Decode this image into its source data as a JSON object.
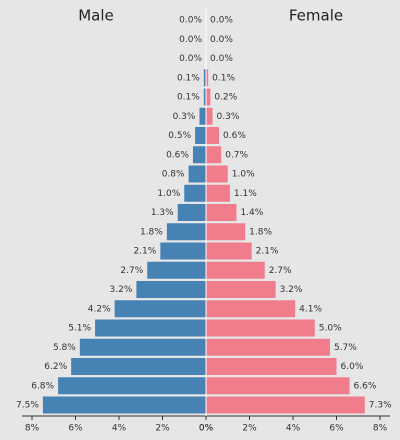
{
  "chart_data": {
    "type": "pyramid",
    "series": [
      {
        "name": "Male",
        "color": "#4682b4",
        "values": [
          0.0,
          0.0,
          0.0,
          0.1,
          0.1,
          0.3,
          0.5,
          0.6,
          0.8,
          1.0,
          1.3,
          1.8,
          2.1,
          2.7,
          3.2,
          4.2,
          5.1,
          5.8,
          6.2,
          6.8,
          7.5
        ],
        "value_labels": [
          "0.0%",
          "0.0%",
          "0.0%",
          "0.1%",
          "0.1%",
          "0.3%",
          "0.5%",
          "0.6%",
          "0.8%",
          "1.0%",
          "1.3%",
          "1.8%",
          "2.1%",
          "2.7%",
          "3.2%",
          "4.2%",
          "5.1%",
          "5.8%",
          "6.2%",
          "6.8%",
          "7.5%"
        ]
      },
      {
        "name": "Female",
        "color": "#f07c8c",
        "values": [
          0.0,
          0.0,
          0.0,
          0.1,
          0.2,
          0.3,
          0.6,
          0.7,
          1.0,
          1.1,
          1.4,
          1.8,
          2.1,
          2.7,
          3.2,
          4.1,
          5.0,
          5.7,
          6.0,
          6.6,
          7.3
        ],
        "value_labels": [
          "0.0%",
          "0.0%",
          "0.0%",
          "0.1%",
          "0.2%",
          "0.3%",
          "0.6%",
          "0.7%",
          "1.0%",
          "1.1%",
          "1.4%",
          "1.8%",
          "2.1%",
          "2.7%",
          "3.2%",
          "4.1%",
          "5.0%",
          "5.7%",
          "6.0%",
          "6.6%",
          "7.3%"
        ]
      }
    ],
    "xlim": [
      0,
      8
    ],
    "xticks": [
      {
        "value": 0,
        "label": "0%"
      },
      {
        "value": 2,
        "label": "2%"
      },
      {
        "value": 4,
        "label": "4%"
      },
      {
        "value": 6,
        "label": "6%"
      },
      {
        "value": 8,
        "label": "8%"
      }
    ]
  }
}
